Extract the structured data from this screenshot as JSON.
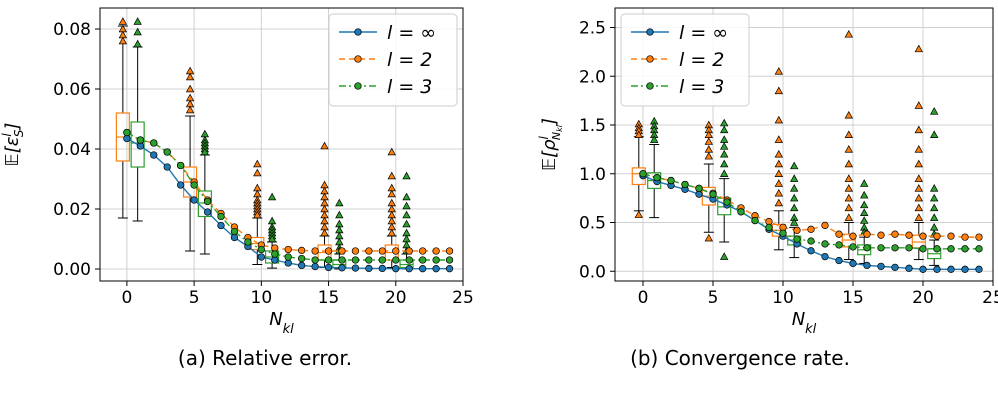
{
  "captions": [
    "(a) Relative error.",
    "(b) Convergence rate."
  ],
  "legend": [
    "l = ∞",
    "l = 2",
    "l = 3"
  ],
  "colors": {
    "linf": "#1f77b4",
    "l2": "#ff7f0e",
    "l3": "#2ca02c",
    "grid": "#d0d0d0"
  },
  "chart_data": [
    {
      "type": "line",
      "xlabel": "N_kl",
      "ylabel": "E[ε_S^l]",
      "xlim": [
        -2,
        25
      ],
      "ylim": [
        -0.004,
        0.087
      ],
      "xticks": [
        0,
        5,
        10,
        15,
        20,
        25
      ],
      "yticks": [
        0.0,
        0.02,
        0.04,
        0.06,
        0.08
      ],
      "ytick_labels": [
        "0.00",
        "0.02",
        "0.04",
        "0.06",
        "0.08"
      ],
      "grid": true,
      "legend_position": "top-right",
      "x": [
        0,
        1,
        2,
        3,
        4,
        5,
        6,
        7,
        8,
        9,
        10,
        11,
        12,
        13,
        14,
        15,
        16,
        17,
        18,
        19,
        20,
        21,
        22,
        23,
        24
      ],
      "series": [
        {
          "name": "l = ∞",
          "linestyle": "solid",
          "values": [
            0.0435,
            0.041,
            0.038,
            0.034,
            0.028,
            0.023,
            0.019,
            0.0145,
            0.0105,
            0.0075,
            0.004,
            0.003,
            0.002,
            0.0012,
            0.0008,
            0.0005,
            0.0004,
            0.0003,
            0.0002,
            0.0002,
            0.0001,
            0.0001,
            0.0001,
            0.0001,
            0.0001
          ]
        },
        {
          "name": "l = 2",
          "linestyle": "dashed",
          "values": [
            0.0455,
            0.043,
            0.042,
            0.039,
            0.0345,
            0.029,
            0.023,
            0.0185,
            0.014,
            0.0105,
            0.008,
            0.007,
            0.0065,
            0.0062,
            0.006,
            0.006,
            0.006,
            0.006,
            0.006,
            0.006,
            0.006,
            0.006,
            0.006,
            0.006,
            0.006
          ]
        },
        {
          "name": "l = 3",
          "linestyle": "dashdot",
          "values": [
            0.0455,
            0.043,
            0.042,
            0.039,
            0.0345,
            0.028,
            0.0225,
            0.0175,
            0.0125,
            0.009,
            0.0065,
            0.005,
            0.004,
            0.0035,
            0.003,
            0.003,
            0.003,
            0.003,
            0.003,
            0.003,
            0.003,
            0.003,
            0.003,
            0.003,
            0.003
          ]
        }
      ],
      "boxes": [
        {
          "series": "l = 2",
          "x": -0.3,
          "q1": 0.036,
          "median": 0.044,
          "q3": 0.052,
          "whislo": 0.017,
          "whishi": 0.081,
          "fliers": [
            0.0825,
            0.08,
            0.078,
            0.076
          ]
        },
        {
          "series": "l = 3",
          "x": 0.8,
          "q1": 0.034,
          "median": 0.042,
          "q3": 0.049,
          "whislo": 0.016,
          "whishi": 0.074,
          "fliers": [
            0.0825,
            0.079,
            0.075
          ]
        },
        {
          "series": "l = 2",
          "x": 4.7,
          "q1": 0.024,
          "median": 0.029,
          "q3": 0.034,
          "whislo": 0.006,
          "whishi": 0.051,
          "fliers": [
            0.066,
            0.064,
            0.06,
            0.057,
            0.055,
            0.053
          ]
        },
        {
          "series": "l = 3",
          "x": 5.8,
          "q1": 0.0175,
          "median": 0.022,
          "q3": 0.026,
          "whislo": 0.005,
          "whishi": 0.038,
          "fliers": [
            0.045,
            0.043,
            0.042,
            0.041,
            0.04,
            0.039
          ]
        },
        {
          "series": "l = 2",
          "x": 9.7,
          "q1": 0.0065,
          "median": 0.0085,
          "q3": 0.0105,
          "whislo": 0.0015,
          "whishi": 0.017,
          "fliers": [
            0.035,
            0.032,
            0.027,
            0.025,
            0.023,
            0.022,
            0.021,
            0.02,
            0.019,
            0.018
          ]
        },
        {
          "series": "l = 3",
          "x": 10.8,
          "q1": 0.002,
          "median": 0.004,
          "q3": 0.006,
          "whislo": 0.0003,
          "whishi": 0.009,
          "fliers": [
            0.024,
            0.016,
            0.014,
            0.013,
            0.012,
            0.011,
            0.01
          ]
        },
        {
          "series": "l = 2",
          "x": 14.7,
          "q1": 0.003,
          "median": 0.0055,
          "q3": 0.008,
          "whislo": 0.0005,
          "whishi": 0.011,
          "fliers": [
            0.041,
            0.028,
            0.026,
            0.024,
            0.022,
            0.02,
            0.018,
            0.016,
            0.014,
            0.012
          ]
        },
        {
          "series": "l = 3",
          "x": 15.8,
          "q1": 0.0005,
          "median": 0.0015,
          "q3": 0.003,
          "whislo": 0.0,
          "whishi": 0.005,
          "fliers": [
            0.022,
            0.018,
            0.015,
            0.013,
            0.011,
            0.009,
            0.007,
            0.006
          ]
        },
        {
          "series": "l = 2",
          "x": 19.7,
          "q1": 0.003,
          "median": 0.0055,
          "q3": 0.008,
          "whislo": 0.0005,
          "whishi": 0.011,
          "fliers": [
            0.039,
            0.031,
            0.027,
            0.025,
            0.022,
            0.02,
            0.018,
            0.016,
            0.014,
            0.012
          ]
        },
        {
          "series": "l = 3",
          "x": 20.8,
          "q1": 0.0005,
          "median": 0.0015,
          "q3": 0.003,
          "whislo": 0.0,
          "whishi": 0.005,
          "fliers": [
            0.031,
            0.024,
            0.021,
            0.018,
            0.015,
            0.012,
            0.01,
            0.008,
            0.006
          ]
        }
      ]
    },
    {
      "type": "line",
      "xlabel": "N_kl",
      "ylabel": "E[ρ^l_N_kl]",
      "xlim": [
        -2,
        25
      ],
      "ylim": [
        -0.1,
        2.7
      ],
      "xticks": [
        0,
        5,
        10,
        15,
        20,
        25
      ],
      "yticks": [
        0.0,
        0.5,
        1.0,
        1.5,
        2.0,
        2.5
      ],
      "ytick_labels": [
        "0.0",
        "0.5",
        "1.0",
        "1.5",
        "2.0",
        "2.5"
      ],
      "grid": true,
      "legend_position": "top-left",
      "x": [
        0,
        1,
        2,
        3,
        4,
        5,
        6,
        7,
        8,
        9,
        10,
        11,
        12,
        13,
        14,
        15,
        16,
        17,
        18,
        19,
        20,
        21,
        22,
        23,
        24
      ],
      "series": [
        {
          "name": "l = ∞",
          "linestyle": "solid",
          "values": [
            0.98,
            0.92,
            0.88,
            0.84,
            0.79,
            0.74,
            0.68,
            0.61,
            0.52,
            0.43,
            0.36,
            0.28,
            0.21,
            0.15,
            0.11,
            0.08,
            0.06,
            0.05,
            0.04,
            0.03,
            0.02,
            0.02,
            0.02,
            0.02,
            0.02
          ]
        },
        {
          "name": "l = 2",
          "linestyle": "dashed",
          "values": [
            1.0,
            0.96,
            0.93,
            0.89,
            0.85,
            0.8,
            0.73,
            0.65,
            0.57,
            0.51,
            0.45,
            0.42,
            0.43,
            0.47,
            0.38,
            0.36,
            0.38,
            0.37,
            0.38,
            0.37,
            0.36,
            0.36,
            0.36,
            0.35,
            0.35
          ]
        },
        {
          "name": "l = 3",
          "linestyle": "dashdot",
          "values": [
            1.0,
            0.96,
            0.93,
            0.89,
            0.85,
            0.79,
            0.71,
            0.61,
            0.52,
            0.45,
            0.39,
            0.33,
            0.31,
            0.28,
            0.27,
            0.25,
            0.24,
            0.24,
            0.24,
            0.24,
            0.23,
            0.23,
            0.23,
            0.23,
            0.23
          ]
        }
      ],
      "boxes": [
        {
          "series": "l = 2",
          "x": -0.3,
          "q1": 0.89,
          "median": 1.0,
          "q3": 1.06,
          "whislo": 0.62,
          "whishi": 1.38,
          "fliers": [
            1.51,
            1.47,
            1.44,
            1.4,
            0.58
          ]
        },
        {
          "series": "l = 3",
          "x": 0.8,
          "q1": 0.85,
          "median": 0.93,
          "q3": 1.01,
          "whislo": 0.55,
          "whishi": 1.3,
          "fliers": [
            1.54,
            1.49,
            1.45,
            1.4,
            1.35
          ]
        },
        {
          "series": "l = 2",
          "x": 4.7,
          "q1": 0.68,
          "median": 0.77,
          "q3": 0.86,
          "whislo": 0.4,
          "whishi": 1.1,
          "fliers": [
            1.5,
            1.45,
            1.4,
            1.33,
            1.25,
            1.18,
            0.34
          ]
        },
        {
          "series": "l = 3",
          "x": 5.8,
          "q1": 0.58,
          "median": 0.66,
          "q3": 0.75,
          "whislo": 0.3,
          "whishi": 0.95,
          "fliers": [
            1.52,
            1.45,
            1.35,
            1.28,
            1.2,
            1.1,
            1.0,
            0.15
          ]
        },
        {
          "series": "l = 2",
          "x": 9.7,
          "q1": 0.36,
          "median": 0.42,
          "q3": 0.48,
          "whislo": 0.22,
          "whishi": 0.62,
          "fliers": [
            2.05,
            1.85,
            1.55,
            1.35,
            1.2,
            1.1,
            1.0,
            0.9,
            0.8,
            0.7
          ]
        },
        {
          "series": "l = 3",
          "x": 10.8,
          "q1": 0.27,
          "median": 0.32,
          "q3": 0.36,
          "whislo": 0.14,
          "whishi": 0.45,
          "fliers": [
            1.08,
            0.95,
            0.85,
            0.75,
            0.65,
            0.55,
            0.5
          ]
        },
        {
          "series": "l = 2",
          "x": 14.7,
          "q1": 0.25,
          "median": 0.32,
          "q3": 0.38,
          "whislo": 0.12,
          "whishi": 0.5,
          "fliers": [
            2.43,
            1.6,
            1.4,
            1.25,
            1.1,
            0.95,
            0.85,
            0.75,
            0.65,
            0.55
          ]
        },
        {
          "series": "l = 3",
          "x": 15.8,
          "q1": 0.17,
          "median": 0.22,
          "q3": 0.27,
          "whislo": 0.08,
          "whishi": 0.35,
          "fliers": [
            0.9,
            0.78,
            0.68,
            0.6,
            0.52,
            0.45,
            0.4
          ]
        },
        {
          "series": "l = 2",
          "x": 19.7,
          "q1": 0.24,
          "median": 0.3,
          "q3": 0.37,
          "whislo": 0.12,
          "whishi": 0.5,
          "fliers": [
            2.28,
            1.7,
            1.45,
            1.25,
            1.1,
            0.95,
            0.85,
            0.75,
            0.65,
            0.55
          ]
        },
        {
          "series": "l = 3",
          "x": 20.8,
          "q1": 0.13,
          "median": 0.18,
          "q3": 0.23,
          "whislo": 0.06,
          "whishi": 0.32,
          "fliers": [
            1.64,
            1.4,
            0.85,
            0.75,
            0.65,
            0.55,
            0.45,
            0.38
          ]
        }
      ]
    }
  ]
}
